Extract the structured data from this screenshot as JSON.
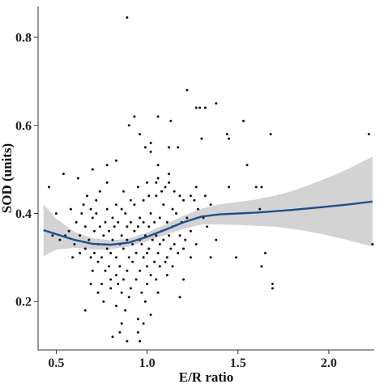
{
  "chart_data": {
    "type": "scatter",
    "xlabel": "E/R ratio",
    "ylabel": "SOD (units)",
    "xlim": [
      0.4,
      2.25
    ],
    "ylim": [
      0.09,
      0.87
    ],
    "x_ticks": [
      0.5,
      1.0,
      1.5,
      2.0
    ],
    "x_tick_labels": [
      "0.5",
      "1.0",
      "1.5",
      "2.0"
    ],
    "y_ticks": [
      0.2,
      0.4,
      0.6,
      0.8
    ],
    "y_tick_labels": [
      "0.2",
      "0.4",
      "0.6",
      "0.8"
    ],
    "grid": false,
    "legend": "none",
    "colors": {
      "points": "#111111",
      "smooth_line": "#1f4e8c",
      "confidence_band": "#d3d3d3",
      "axis": "#333333"
    },
    "points": [
      [
        0.89,
        0.845
      ],
      [
        1.22,
        0.68
      ],
      [
        1.27,
        0.64
      ],
      [
        1.29,
        0.64
      ],
      [
        1.32,
        0.64
      ],
      [
        1.38,
        0.65
      ],
      [
        1.06,
        0.62
      ],
      [
        1.13,
        0.61
      ],
      [
        1.53,
        0.61
      ],
      [
        0.9,
        0.6
      ],
      [
        0.96,
        0.58
      ],
      [
        1.44,
        0.58
      ],
      [
        1.68,
        0.58
      ],
      [
        2.22,
        0.58
      ],
      [
        1.45,
        0.57
      ],
      [
        1.3,
        0.57
      ],
      [
        1.02,
        0.56
      ],
      [
        0.99,
        0.55
      ],
      [
        1.02,
        0.54
      ],
      [
        1.12,
        0.55
      ],
      [
        1.17,
        0.55
      ],
      [
        0.83,
        0.52
      ],
      [
        0.78,
        0.51
      ],
      [
        1.55,
        0.51
      ],
      [
        1.06,
        0.51
      ],
      [
        0.7,
        0.5
      ],
      [
        0.54,
        0.49
      ],
      [
        0.62,
        0.48
      ],
      [
        0.78,
        0.47
      ],
      [
        0.46,
        0.46
      ],
      [
        1.06,
        0.48
      ],
      [
        1.12,
        0.49
      ],
      [
        1.12,
        0.47
      ],
      [
        1.05,
        0.47
      ],
      [
        1.1,
        0.46
      ],
      [
        1.27,
        0.46
      ],
      [
        1.45,
        0.46
      ],
      [
        1.6,
        0.46
      ],
      [
        1.63,
        0.46
      ],
      [
        1.0,
        0.47
      ],
      [
        0.95,
        0.46
      ],
      [
        0.87,
        0.45
      ],
      [
        0.74,
        0.45
      ],
      [
        1.08,
        0.45
      ],
      [
        1.15,
        0.45
      ],
      [
        1.18,
        0.44
      ],
      [
        1.24,
        0.44
      ],
      [
        1.32,
        0.44
      ],
      [
        0.67,
        0.44
      ],
      [
        0.91,
        0.43
      ],
      [
        0.98,
        0.43
      ],
      [
        1.01,
        0.44
      ],
      [
        1.05,
        0.44
      ],
      [
        0.83,
        0.42
      ],
      [
        0.72,
        0.43
      ],
      [
        0.65,
        0.42
      ],
      [
        1.2,
        0.43
      ],
      [
        1.26,
        0.43
      ],
      [
        1.35,
        0.42
      ],
      [
        0.78,
        0.41
      ],
      [
        0.86,
        0.41
      ],
      [
        0.93,
        0.42
      ],
      [
        1.09,
        0.42
      ],
      [
        1.14,
        0.41
      ],
      [
        1.28,
        0.41
      ],
      [
        1.62,
        0.41
      ],
      [
        0.69,
        0.41
      ],
      [
        0.58,
        0.41
      ],
      [
        0.5,
        0.4
      ],
      [
        0.64,
        0.4
      ],
      [
        0.72,
        0.4
      ],
      [
        0.81,
        0.39
      ],
      [
        0.88,
        0.4
      ],
      [
        0.96,
        0.39
      ],
      [
        1.02,
        0.4
      ],
      [
        1.07,
        0.39
      ],
      [
        1.16,
        0.4
      ],
      [
        1.22,
        0.39
      ],
      [
        1.31,
        0.39
      ],
      [
        0.7,
        0.39
      ],
      [
        0.77,
        0.38
      ],
      [
        0.84,
        0.38
      ],
      [
        0.91,
        0.38
      ],
      [
        0.98,
        0.38
      ],
      [
        1.04,
        0.38
      ],
      [
        1.11,
        0.38
      ],
      [
        1.19,
        0.38
      ],
      [
        0.61,
        0.38
      ],
      [
        0.66,
        0.37
      ],
      [
        0.74,
        0.37
      ],
      [
        0.82,
        0.37
      ],
      [
        0.89,
        0.37
      ],
      [
        0.95,
        0.37
      ],
      [
        1.01,
        0.37
      ],
      [
        1.08,
        0.36
      ],
      [
        1.14,
        0.37
      ],
      [
        1.24,
        0.36
      ],
      [
        1.33,
        0.37
      ],
      [
        0.57,
        0.36
      ],
      [
        0.63,
        0.35
      ],
      [
        0.71,
        0.36
      ],
      [
        0.79,
        0.36
      ],
      [
        0.86,
        0.35
      ],
      [
        0.93,
        0.36
      ],
      [
        0.99,
        0.35
      ],
      [
        1.05,
        0.35
      ],
      [
        1.12,
        0.35
      ],
      [
        1.18,
        0.35
      ],
      [
        0.48,
        0.35
      ],
      [
        0.55,
        0.35
      ],
      [
        0.68,
        0.34
      ],
      [
        0.76,
        0.35
      ],
      [
        0.81,
        0.34
      ],
      [
        0.89,
        0.34
      ],
      [
        0.96,
        0.34
      ],
      [
        1.03,
        0.34
      ],
      [
        1.09,
        0.34
      ],
      [
        1.15,
        0.33
      ],
      [
        1.21,
        0.34
      ],
      [
        1.38,
        0.34
      ],
      [
        0.52,
        0.34
      ],
      [
        0.6,
        0.33
      ],
      [
        0.73,
        0.33
      ],
      [
        0.78,
        0.32
      ],
      [
        0.85,
        0.33
      ],
      [
        0.92,
        0.33
      ],
      [
        0.97,
        0.33
      ],
      [
        1.01,
        0.32
      ],
      [
        1.07,
        0.33
      ],
      [
        1.13,
        0.32
      ],
      [
        1.2,
        0.32
      ],
      [
        1.27,
        0.33
      ],
      [
        0.66,
        0.32
      ],
      [
        0.71,
        0.31
      ],
      [
        0.8,
        0.31
      ],
      [
        0.87,
        0.32
      ],
      [
        0.94,
        0.31
      ],
      [
        1.0,
        0.31
      ],
      [
        1.06,
        0.31
      ],
      [
        1.11,
        0.3
      ],
      [
        1.17,
        0.31
      ],
      [
        0.63,
        0.31
      ],
      [
        0.59,
        0.3
      ],
      [
        0.69,
        0.3
      ],
      [
        0.75,
        0.3
      ],
      [
        0.83,
        0.3
      ],
      [
        0.9,
        0.3
      ],
      [
        0.98,
        0.3
      ],
      [
        1.04,
        0.29
      ],
      [
        1.1,
        0.29
      ],
      [
        1.24,
        0.3
      ],
      [
        1.35,
        0.3
      ],
      [
        1.49,
        0.3
      ],
      [
        1.65,
        0.31
      ],
      [
        1.63,
        0.28
      ],
      [
        0.73,
        0.29
      ],
      [
        0.79,
        0.28
      ],
      [
        0.85,
        0.28
      ],
      [
        0.92,
        0.29
      ],
      [
        1.0,
        0.28
      ],
      [
        1.07,
        0.28
      ],
      [
        1.14,
        0.28
      ],
      [
        0.7,
        0.27
      ],
      [
        0.77,
        0.27
      ],
      [
        0.83,
        0.26
      ],
      [
        0.89,
        0.27
      ],
      [
        0.96,
        0.27
      ],
      [
        1.02,
        0.26
      ],
      [
        1.11,
        0.26
      ],
      [
        0.8,
        0.25
      ],
      [
        0.87,
        0.25
      ],
      [
        0.94,
        0.25
      ],
      [
        1.0,
        0.24
      ],
      [
        1.05,
        0.25
      ],
      [
        1.2,
        0.25
      ],
      [
        0.69,
        0.24
      ],
      [
        0.75,
        0.24
      ],
      [
        0.84,
        0.24
      ],
      [
        0.91,
        0.23
      ],
      [
        1.69,
        0.24
      ],
      [
        1.69,
        0.23
      ],
      [
        0.8,
        0.23
      ],
      [
        0.86,
        0.22
      ],
      [
        0.97,
        0.22
      ],
      [
        1.06,
        0.22
      ],
      [
        0.73,
        0.22
      ],
      [
        1.18,
        0.21
      ],
      [
        0.9,
        0.21
      ],
      [
        0.99,
        0.2
      ],
      [
        0.76,
        0.2
      ],
      [
        0.83,
        0.19
      ],
      [
        0.66,
        0.18
      ],
      [
        0.88,
        0.18
      ],
      [
        1.02,
        0.17
      ],
      [
        0.95,
        0.16
      ],
      [
        0.86,
        0.15
      ],
      [
        0.98,
        0.15
      ],
      [
        0.85,
        0.13
      ],
      [
        0.95,
        0.13
      ],
      [
        0.81,
        0.12
      ],
      [
        0.89,
        0.11
      ],
      [
        0.96,
        0.11
      ],
      [
        2.24,
        0.33
      ],
      [
        0.93,
        0.62
      ]
    ],
    "smooth_line": {
      "x": [
        0.43,
        0.5,
        0.6,
        0.7,
        0.8,
        0.9,
        1.0,
        1.1,
        1.2,
        1.3,
        1.4,
        1.5,
        1.6,
        1.7,
        1.8,
        1.9,
        2.0,
        2.1,
        2.24
      ],
      "y": [
        0.362,
        0.353,
        0.34,
        0.331,
        0.329,
        0.334,
        0.347,
        0.363,
        0.38,
        0.393,
        0.398,
        0.4,
        0.402,
        0.405,
        0.408,
        0.412,
        0.416,
        0.42,
        0.427
      ],
      "ci_low": [
        0.303,
        0.318,
        0.322,
        0.318,
        0.319,
        0.325,
        0.337,
        0.351,
        0.365,
        0.375,
        0.375,
        0.374,
        0.372,
        0.37,
        0.365,
        0.358,
        0.35,
        0.34,
        0.325
      ],
      "ci_high": [
        0.421,
        0.388,
        0.358,
        0.344,
        0.339,
        0.343,
        0.357,
        0.375,
        0.395,
        0.411,
        0.421,
        0.426,
        0.432,
        0.44,
        0.451,
        0.466,
        0.482,
        0.5,
        0.529
      ]
    }
  }
}
